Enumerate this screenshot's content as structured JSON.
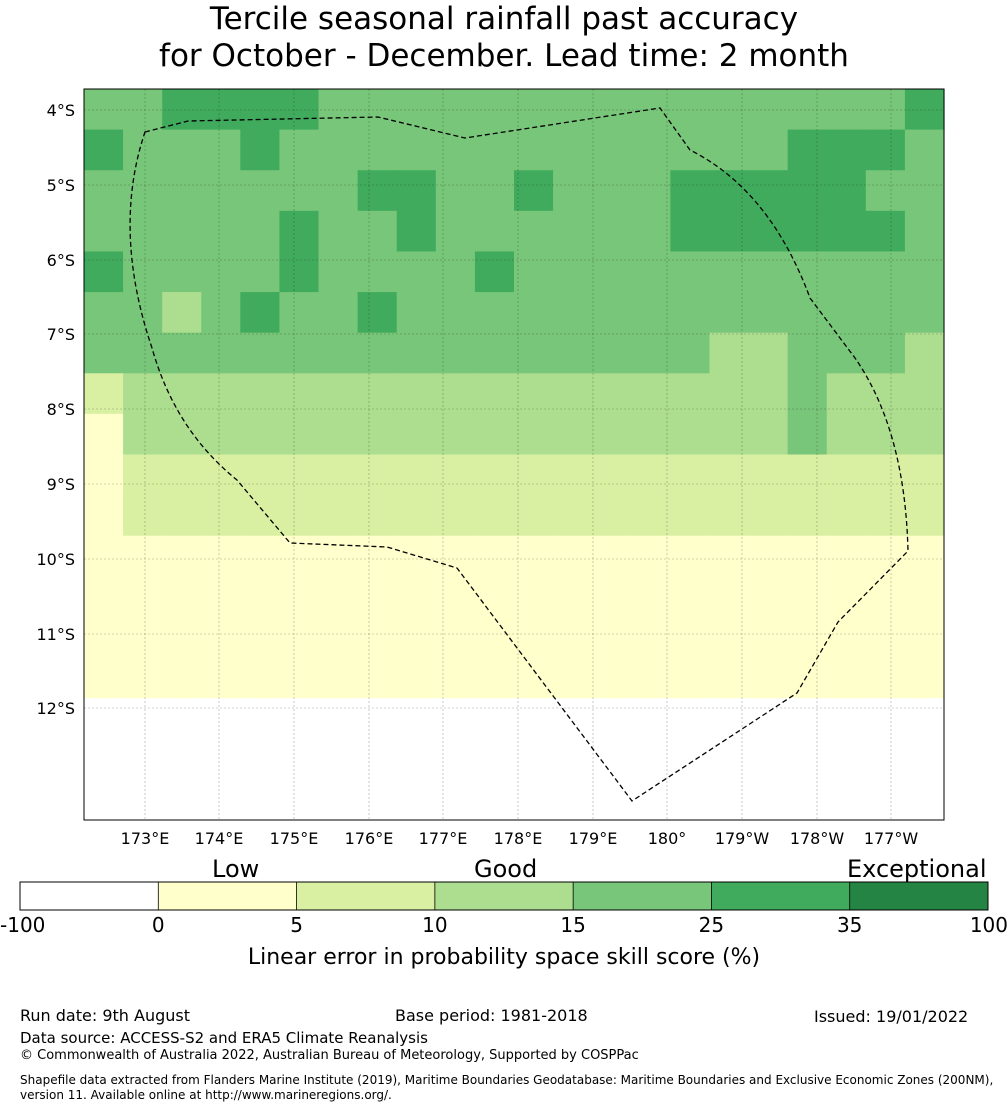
{
  "title_line1": "Tercile seasonal rainfall past accuracy",
  "title_line2": "for October - December. Lead time: 2 month",
  "lat_labels": [
    "4°S",
    "5°S",
    "6°S",
    "7°S",
    "8°S",
    "9°S",
    "10°S",
    "11°S",
    "12°S"
  ],
  "lon_labels": [
    "173°E",
    "174°E",
    "175°E",
    "176°E",
    "177°E",
    "178°E",
    "179°E",
    "180°",
    "179°W",
    "178°W",
    "177°W"
  ],
  "legend": {
    "categories": [
      "Low",
      "Good",
      "Exceptional"
    ],
    "ticks": [
      "-100",
      "0",
      "5",
      "10",
      "15",
      "25",
      "35",
      "100"
    ],
    "colors": [
      "#ffffff",
      "#ffffcc",
      "#d9f0a3",
      "#addd8e",
      "#78c679",
      "#41ab5d",
      "#238443"
    ],
    "xlabel": "Linear error in probability space skill score (%)"
  },
  "footer": {
    "run_date": "Run date: 9th August",
    "base_period": "Base period: 1981-2018",
    "issued": "Issued: 19/01/2022",
    "data_source": "Data source: ACCESS-S2 and ERA5 Climate Reanalysis",
    "copyright": "© Commonwealth of Australia 2022, Australian Bureau of Meteorology, Supported by COSPPac",
    "shapefile_1": "Shapefile data extracted from Flanders Marine Institute (2019), Maritime Boundaries Geodatabase: Maritime Boundaries and Exclusive Economic Zones (200NM),",
    "shapefile_2": "version 11. Available online at http://www.marineregions.org/."
  },
  "grid_cells": [
    "4455554444444444444445",
    "5444544444444444445554",
    "4444444554454445555544",
    "4444454454444445555554",
    "5444454444544444444444",
    "4434544544444444444444",
    "4444444444444444334443",
    "2333333333333333334333",
    "1333333333333333334333",
    "1222222222222222222222",
    "1222222222222222222222",
    "1111111111111111111111",
    "1111111111111111111111",
    "1111111111111111111111",
    "1111111111111111111111",
    "0000000000000000000000",
    "0000000000000000000000",
    "0000000000000000000000"
  ]
}
